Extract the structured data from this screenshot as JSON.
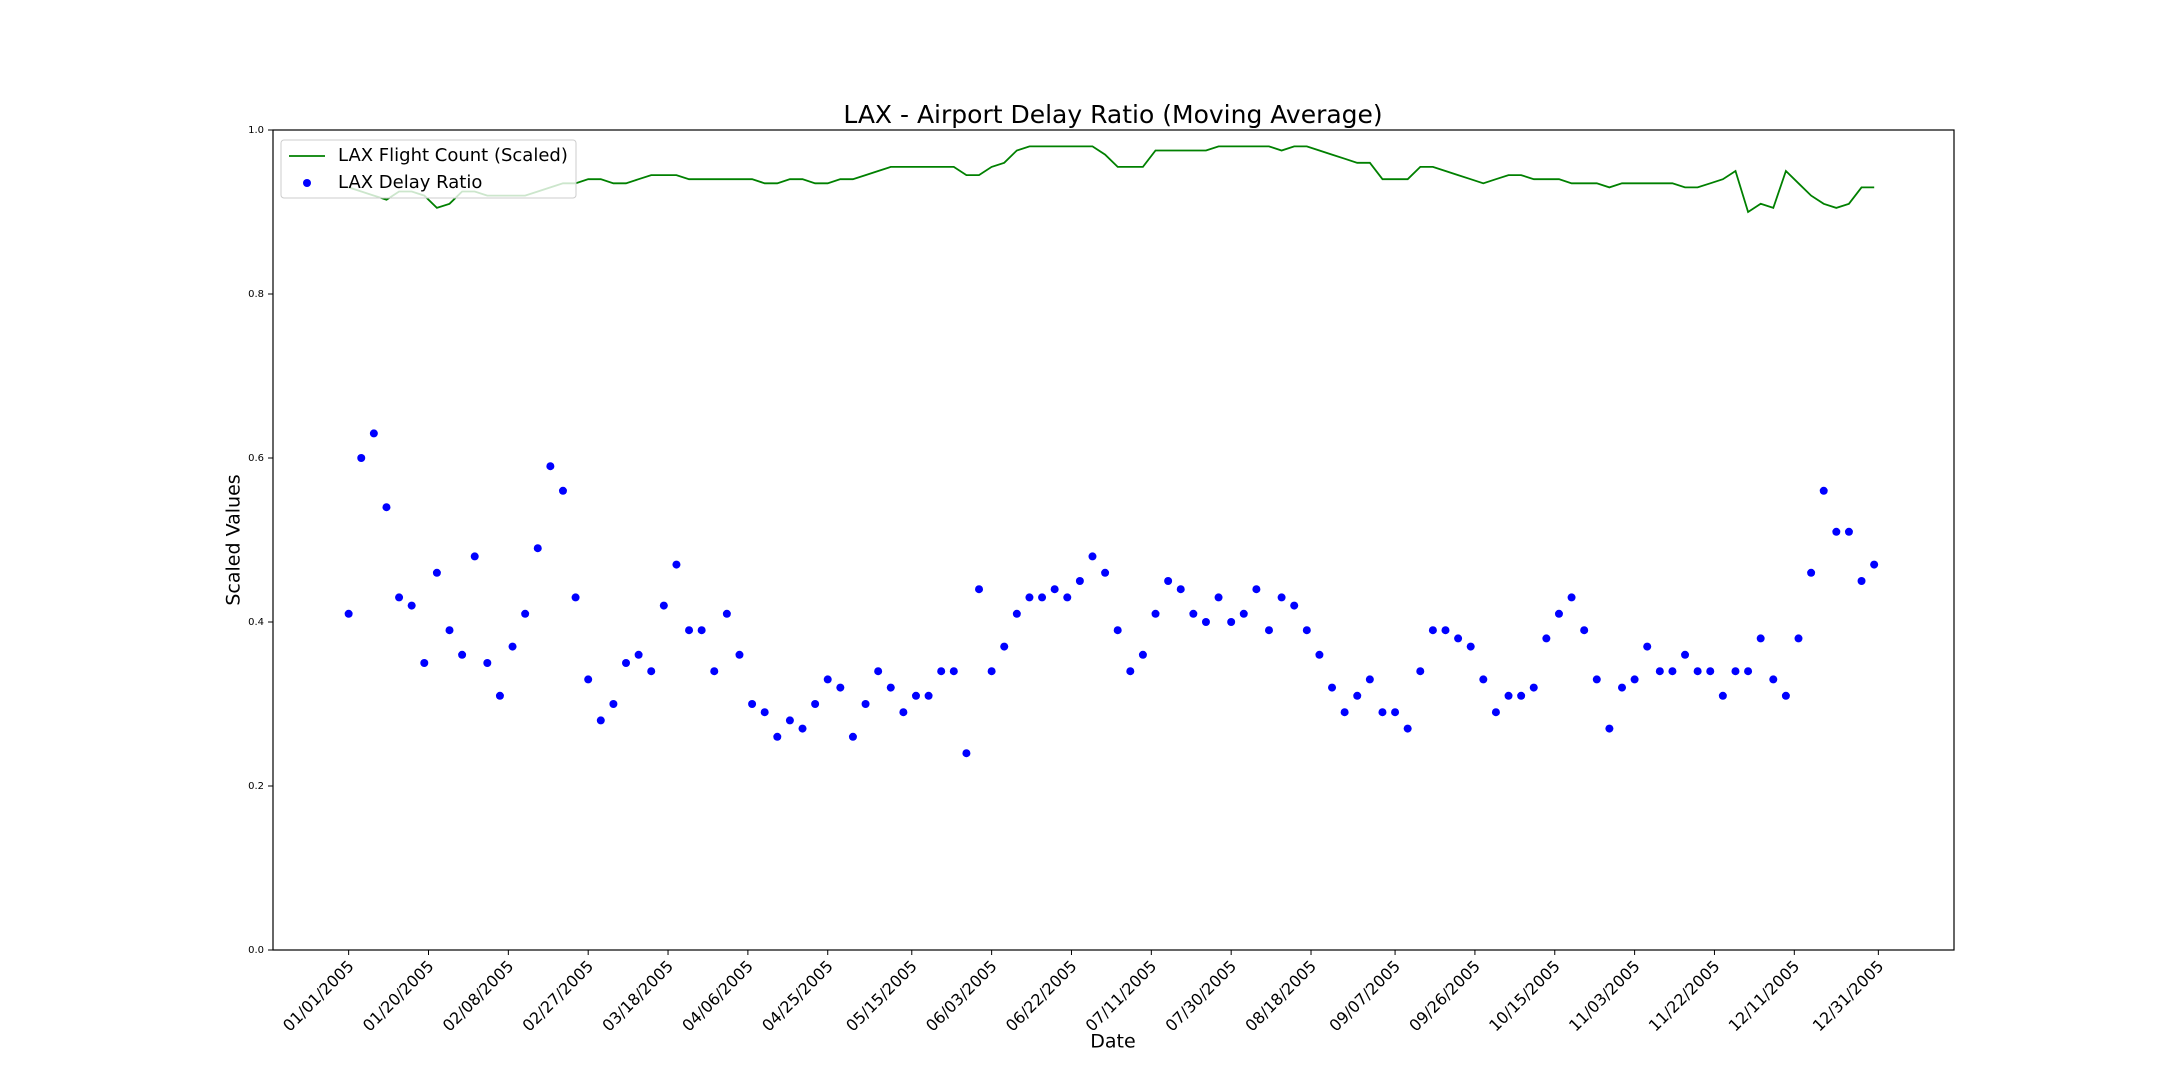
{
  "chart_data": {
    "type": "line",
    "title": "LAX - Airport Delay Ratio (Moving Average)",
    "xlabel": "Date",
    "ylabel": "Scaled Values",
    "x": [
      "01/01/2005",
      "01/04/2005",
      "01/07/2005",
      "01/10/2005",
      "01/13/2005",
      "01/16/2005",
      "01/19/2005",
      "01/22/2005",
      "01/25/2005",
      "01/28/2005",
      "01/31/2005",
      "02/03/2005",
      "02/06/2005",
      "02/09/2005",
      "02/12/2005",
      "02/15/2005",
      "02/18/2005",
      "02/21/2005",
      "02/24/2005",
      "02/27/2005",
      "03/02/2005",
      "03/05/2005",
      "03/08/2005",
      "03/11/2005",
      "03/14/2005",
      "03/17/2005",
      "03/20/2005",
      "03/23/2005",
      "03/26/2005",
      "03/29/2005",
      "04/01/2005",
      "04/04/2005",
      "04/07/2005",
      "04/10/2005",
      "04/13/2005",
      "04/16/2005",
      "04/19/2005",
      "04/22/2005",
      "04/25/2005",
      "04/28/2005",
      "05/01/2005",
      "05/04/2005",
      "05/07/2005",
      "05/10/2005",
      "05/13/2005",
      "05/16/2005",
      "05/19/2005",
      "05/22/2005",
      "05/25/2005",
      "05/28/2005",
      "05/31/2005",
      "06/03/2005",
      "06/06/2005",
      "06/09/2005",
      "06/12/2005",
      "06/15/2005",
      "06/18/2005",
      "06/21/2005",
      "06/24/2005",
      "06/27/2005",
      "06/30/2005",
      "07/03/2005",
      "07/06/2005",
      "07/09/2005",
      "07/12/2005",
      "07/15/2005",
      "07/18/2005",
      "07/21/2005",
      "07/24/2005",
      "07/27/2005",
      "07/30/2005",
      "08/02/2005",
      "08/05/2005",
      "08/08/2005",
      "08/11/2005",
      "08/14/2005",
      "08/17/2005",
      "08/20/2005",
      "08/23/2005",
      "08/26/2005",
      "08/29/2005",
      "09/01/2005",
      "09/04/2005",
      "09/07/2005",
      "09/10/2005",
      "09/13/2005",
      "09/16/2005",
      "09/19/2005",
      "09/22/2005",
      "09/25/2005",
      "09/28/2005",
      "10/01/2005",
      "10/04/2005",
      "10/07/2005",
      "10/10/2005",
      "10/13/2005",
      "10/16/2005",
      "10/19/2005",
      "10/22/2005",
      "10/25/2005",
      "10/28/2005",
      "10/31/2005",
      "11/03/2005",
      "11/06/2005",
      "11/09/2005",
      "11/12/2005",
      "11/15/2005",
      "11/18/2005",
      "11/21/2005",
      "11/24/2005",
      "11/27/2005",
      "11/30/2005",
      "12/03/2005",
      "12/06/2005",
      "12/09/2005",
      "12/12/2005",
      "12/15/2005",
      "12/18/2005",
      "12/21/2005",
      "12/24/2005",
      "12/27/2005",
      "12/30/2005"
    ],
    "series": [
      {
        "name": "LAX Flight Count (Scaled)",
        "type": "line",
        "color": "#008000",
        "values": [
          0.93,
          0.925,
          0.92,
          0.915,
          0.925,
          0.925,
          0.92,
          0.905,
          0.91,
          0.925,
          0.925,
          0.92,
          0.92,
          0.92,
          0.92,
          0.925,
          0.93,
          0.935,
          0.935,
          0.94,
          0.94,
          0.935,
          0.935,
          0.94,
          0.945,
          0.945,
          0.945,
          0.94,
          0.94,
          0.94,
          0.94,
          0.94,
          0.94,
          0.935,
          0.935,
          0.94,
          0.94,
          0.935,
          0.935,
          0.94,
          0.94,
          0.945,
          0.95,
          0.955,
          0.955,
          0.955,
          0.955,
          0.955,
          0.955,
          0.945,
          0.945,
          0.955,
          0.96,
          0.975,
          0.98,
          0.98,
          0.98,
          0.98,
          0.98,
          0.98,
          0.97,
          0.955,
          0.955,
          0.955,
          0.975,
          0.975,
          0.975,
          0.975,
          0.975,
          0.98,
          0.98,
          0.98,
          0.98,
          0.98,
          0.975,
          0.98,
          0.98,
          0.975,
          0.97,
          0.965,
          0.96,
          0.96,
          0.94,
          0.94,
          0.94,
          0.955,
          0.955,
          0.95,
          0.945,
          0.94,
          0.935,
          0.94,
          0.945,
          0.945,
          0.94,
          0.94,
          0.94,
          0.935,
          0.935,
          0.935,
          0.93,
          0.935,
          0.935,
          0.935,
          0.935,
          0.935,
          0.93,
          0.93,
          0.935,
          0.94,
          0.95,
          0.9,
          0.91,
          0.905,
          0.95,
          0.935,
          0.92,
          0.91,
          0.905,
          0.91,
          0.93,
          0.93
        ]
      },
      {
        "name": "LAX Delay Ratio",
        "type": "scatter",
        "color": "#0000ff",
        "values": [
          0.41,
          0.6,
          0.63,
          0.54,
          0.43,
          0.42,
          0.35,
          0.46,
          0.39,
          0.36,
          0.48,
          0.35,
          0.31,
          0.37,
          0.41,
          0.49,
          0.59,
          0.56,
          0.43,
          0.33,
          0.28,
          0.3,
          0.35,
          0.36,
          0.34,
          0.42,
          0.47,
          0.39,
          0.39,
          0.34,
          0.41,
          0.36,
          0.3,
          0.29,
          0.26,
          0.28,
          0.27,
          0.3,
          0.33,
          0.32,
          0.26,
          0.3,
          0.34,
          0.32,
          0.29,
          0.31,
          0.31,
          0.34,
          0.34,
          0.24,
          0.44,
          0.34,
          0.37,
          0.41,
          0.43,
          0.43,
          0.44,
          0.43,
          0.45,
          0.48,
          0.46,
          0.39,
          0.34,
          0.36,
          0.41,
          0.45,
          0.44,
          0.41,
          0.4,
          0.43,
          0.4,
          0.41,
          0.44,
          0.39,
          0.43,
          0.42,
          0.39,
          0.36,
          0.32,
          0.29,
          0.31,
          0.33,
          0.29,
          0.29,
          0.27,
          0.34,
          0.39,
          0.39,
          0.38,
          0.37,
          0.33,
          0.29,
          0.31,
          0.31,
          0.32,
          0.38,
          0.41,
          0.43,
          0.39,
          0.33,
          0.27,
          0.32,
          0.33,
          0.37,
          0.34,
          0.34,
          0.36,
          0.34,
          0.34,
          0.31,
          0.34,
          0.34,
          0.38,
          0.33,
          0.31,
          0.38,
          0.46,
          0.56,
          0.51,
          0.51,
          0.45,
          0.47
        ]
      }
    ],
    "xlim": [
      "12/14/2004",
      "01/18/2006"
    ],
    "xticks": [
      "01/01/2005",
      "01/20/2005",
      "02/08/2005",
      "02/27/2005",
      "03/18/2005",
      "04/06/2005",
      "04/25/2005",
      "05/15/2005",
      "06/03/2005",
      "06/22/2005",
      "07/11/2005",
      "07/30/2005",
      "08/18/2005",
      "09/07/2005",
      "09/26/2005",
      "10/15/2005",
      "11/03/2005",
      "11/22/2005",
      "12/11/2005",
      "12/31/2005"
    ],
    "ylim": [
      0,
      1
    ],
    "yticks": [
      {
        "value": 0,
        "label": "0.0"
      },
      {
        "value": 0.2,
        "label": "0.2"
      },
      {
        "value": 0.4,
        "label": "0.4"
      },
      {
        "value": 0.6,
        "label": "0.6"
      },
      {
        "value": 0.8,
        "label": "0.8"
      },
      {
        "value": 1,
        "label": "1.0"
      }
    ],
    "legend": "upper left"
  }
}
